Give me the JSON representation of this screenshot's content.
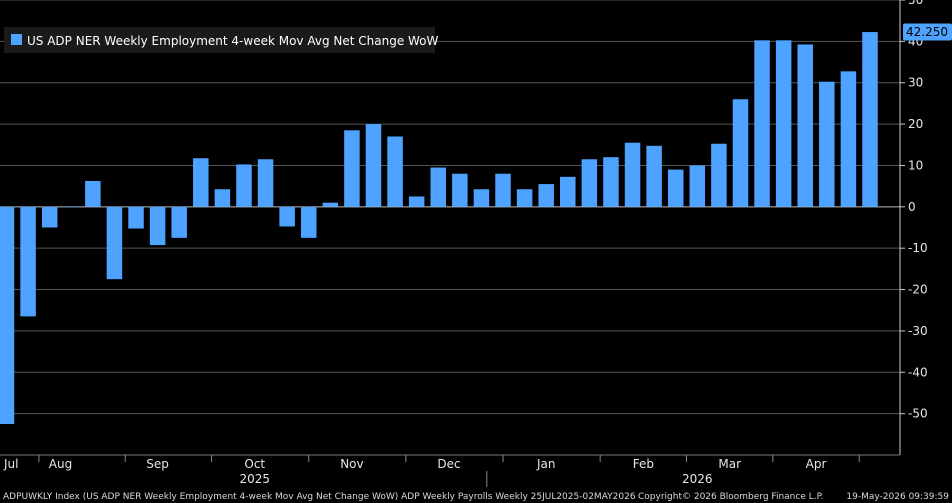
{
  "chart_data": {
    "type": "bar",
    "legend": "US ADP NER Weekly Employment 4-week Mov Avg Net Change WoW",
    "legend_position": "top-left",
    "bar_color": "#4da3ff",
    "grid_color": "#555555",
    "background_color": "#000000",
    "values": [
      -52.5,
      -26.5,
      -5,
      0,
      6.25,
      -17.5,
      -5.25,
      -9.25,
      -7.5,
      11.75,
      4.25,
      10.25,
      11.5,
      -4.75,
      -7.5,
      1,
      18.5,
      20,
      17,
      2.5,
      9.5,
      8,
      4.25,
      8,
      4.25,
      5.5,
      7.25,
      11.5,
      12,
      15.5,
      14.75,
      9,
      10,
      15.25,
      26,
      40.25,
      40.25,
      39.25,
      30.25,
      32.75,
      42.25
    ],
    "last_value_label": "42.250",
    "ylim": [
      -60,
      50
    ],
    "y_ticks": [
      {
        "value": 50,
        "label": "50"
      },
      {
        "value": 40,
        "label": "40"
      },
      {
        "value": 30,
        "label": "30"
      },
      {
        "value": 20,
        "label": "20"
      },
      {
        "value": 10,
        "label": "10"
      },
      {
        "value": 0,
        "label": "0"
      },
      {
        "value": -10,
        "label": "-10"
      },
      {
        "value": -20,
        "label": "-20"
      },
      {
        "value": -30,
        "label": "-30"
      },
      {
        "value": -40,
        "label": "-40"
      },
      {
        "value": -50,
        "label": "-50"
      }
    ],
    "x_month_labels": [
      {
        "label": "Jul",
        "week_index": 0
      },
      {
        "label": "Aug",
        "week_index": 2.5
      },
      {
        "label": "Sep",
        "week_index": 7
      },
      {
        "label": "Oct",
        "week_index": 11.5
      },
      {
        "label": "Nov",
        "week_index": 16
      },
      {
        "label": "Dec",
        "week_index": 20.5
      },
      {
        "label": "Jan",
        "week_index": 25
      },
      {
        "label": "Feb",
        "week_index": 29.5
      },
      {
        "label": "Mar",
        "week_index": 33.5
      },
      {
        "label": "Apr",
        "week_index": 37.5
      }
    ],
    "x_year_labels": [
      {
        "label": "2025",
        "week_index": 11.5
      },
      {
        "label": "2026",
        "week_index": 32
      }
    ],
    "x_separators_week_index": [
      1.5,
      5.5,
      9.5,
      14,
      18.5,
      23,
      27.5,
      31.5,
      35.5,
      39.5
    ],
    "year_separator_week_index": 22.25
  },
  "footer": {
    "left": "ADPUWKLY Index (US ADP NER Weekly Employment 4-week Mov Avg Net Change WoW) ADP Weekly Payrolls Weekly 25JUL2025-02MAY2026",
    "copyright": "Copyright© 2026 Bloomberg Finance L.P.",
    "timestamp": "19-May-2026 09:39:59"
  }
}
